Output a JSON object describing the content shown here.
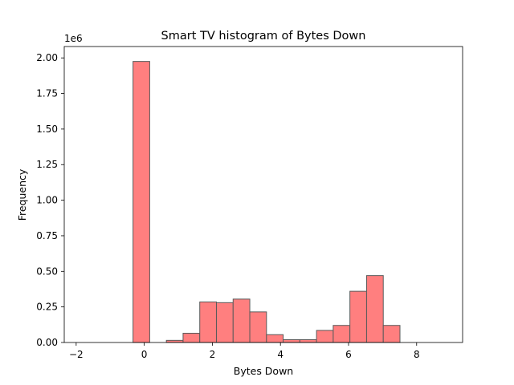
{
  "chart_data": {
    "type": "bar",
    "title": "Smart TV histogram of Bytes Down",
    "xlabel": "Bytes Down",
    "ylabel": "Frequency",
    "y_offset_label": "1e6",
    "xlim": [
      -2.35,
      9.35
    ],
    "ylim": [
      0,
      2.08
    ],
    "x_ticks": [
      -2,
      0,
      2,
      4,
      6,
      8
    ],
    "y_ticks": [
      0.0,
      0.25,
      0.5,
      0.75,
      1.0,
      1.25,
      1.5,
      1.75,
      2.0
    ],
    "x_tick_labels": [
      "−2",
      "0",
      "2",
      "4",
      "6",
      "8"
    ],
    "y_tick_labels": [
      "0.00",
      "0.25",
      "0.50",
      "0.75",
      "1.00",
      "1.25",
      "1.50",
      "1.75",
      "2.00"
    ],
    "grid": false,
    "legend": null,
    "colors": {
      "bar_fill": "#ff7f7f",
      "bar_edge": "#5a5a5a"
    },
    "bin_edges": [
      -1.8,
      -1.31,
      -0.82,
      -0.33,
      0.16,
      0.65,
      1.14,
      1.63,
      2.12,
      2.61,
      3.1,
      3.59,
      4.08,
      4.57,
      5.06,
      5.55,
      6.04,
      6.53,
      7.02,
      7.51,
      8.0,
      8.49
    ],
    "values": [
      0,
      0,
      0,
      1.975,
      0,
      0.015,
      0.065,
      0.285,
      0.28,
      0.305,
      0.215,
      0.055,
      0.02,
      0.02,
      0.085,
      0.12,
      0.36,
      0.47,
      0.12,
      0,
      0
    ]
  }
}
